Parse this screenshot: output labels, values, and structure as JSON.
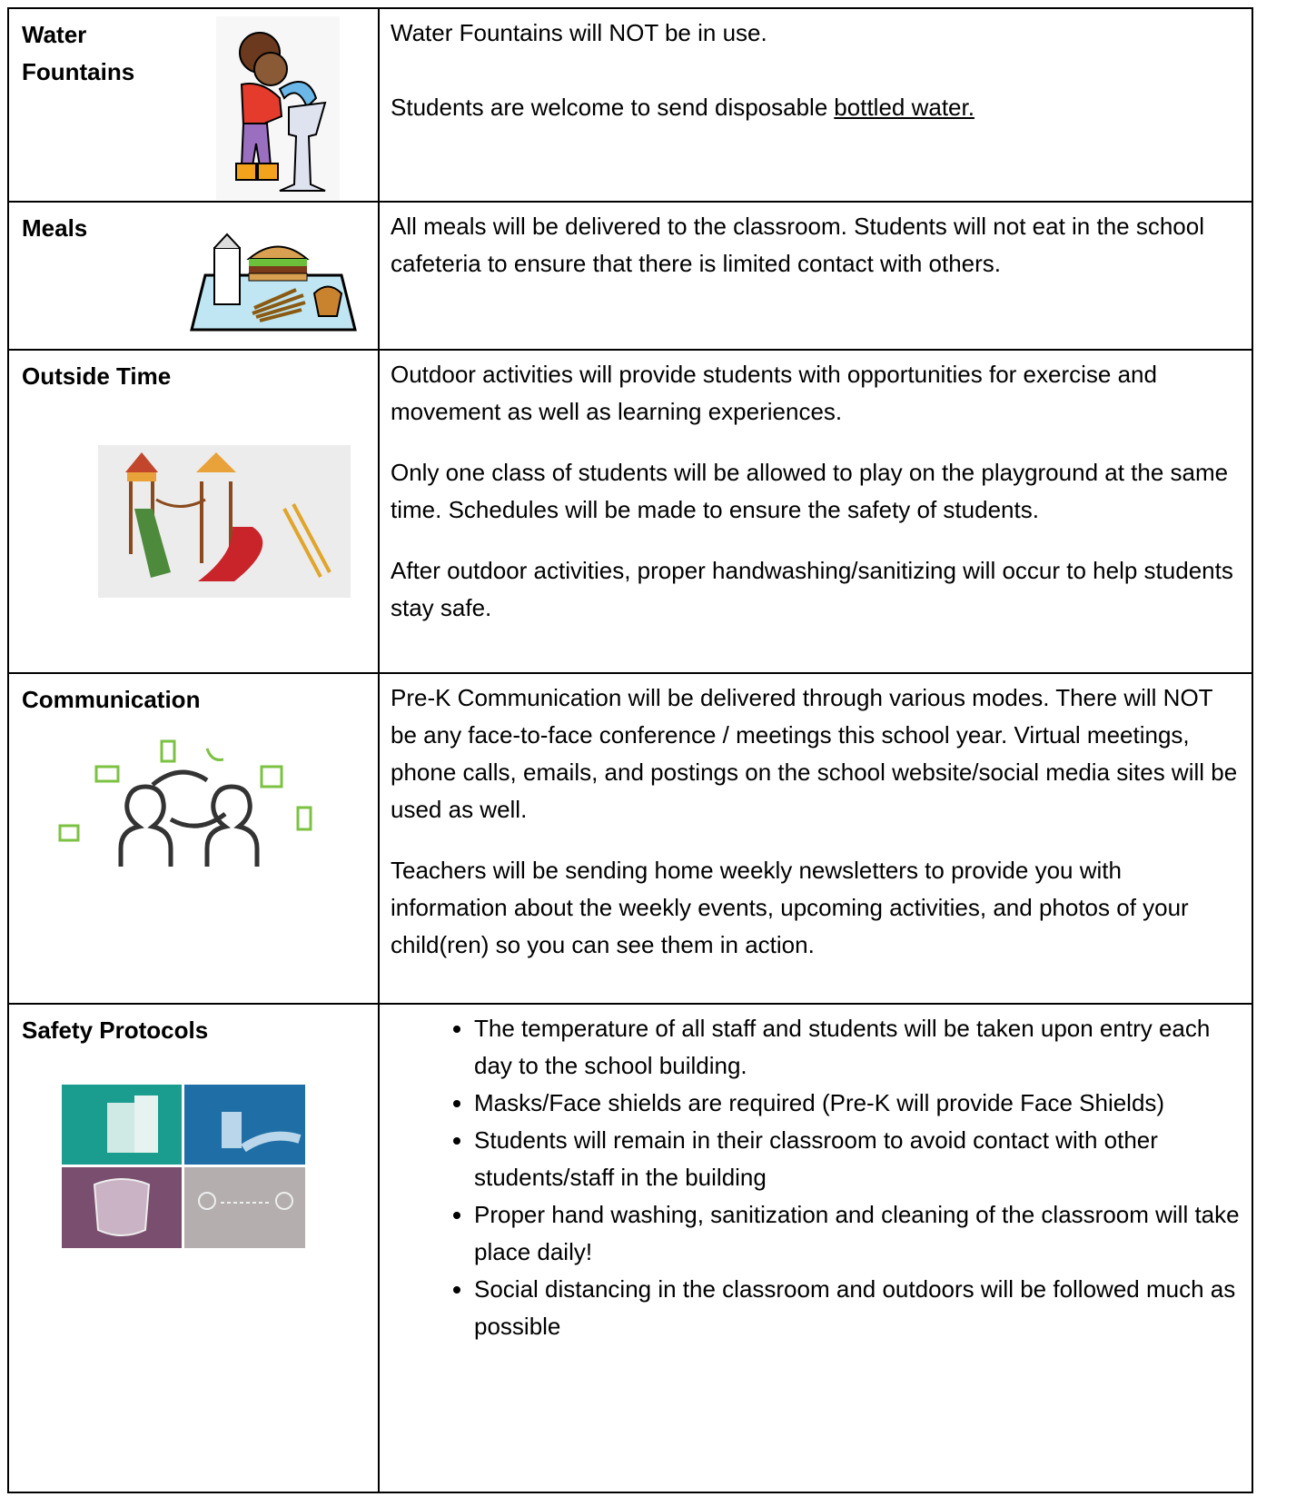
{
  "rows": [
    {
      "label": "Water Fountains",
      "paragraphs": [
        "Water Fountains will NOT be in use."
      ],
      "closing": {
        "text": "Students are welcome to send disposable",
        "link": "bottled water."
      }
    },
    {
      "label": "Meals",
      "paragraphs": [
        "All meals will be delivered to the classroom.  Students will not eat in the school cafeteria to ensure that there is limited contact with others."
      ]
    },
    {
      "label": "Outside Time",
      "paragraphs": [
        "Outdoor activities will provide students with opportunities for exercise and movement as well as learning experiences.",
        "Only one class of students will be allowed to play on the playground at the same time.  Schedules will be made to ensure the safety of students.",
        "After outdoor activities, proper handwashing/sanitizing will occur to help students stay safe."
      ]
    },
    {
      "label": "Communication",
      "paragraphs": [
        "Pre-K Communication will be delivered through various modes. There will NOT be any face-to-face conference / meetings this school year.  Virtual meetings, phone calls, emails, and postings on the school website/social media sites will be used as well.",
        "Teachers will be sending home weekly newsletters to provide you with information about the weekly events, upcoming activities, and photos of your child(ren) so you can see them in action."
      ]
    },
    {
      "label": "Safety Protocols",
      "bullets": [
        "The temperature of all staff and students will be taken upon entry each day to the school building.",
        "Masks/Face shields are required (Pre-K will provide Face Shields)",
        "Students will remain in their classroom to avoid contact with other students/staff in the building",
        "Proper hand washing, sanitization and cleaning of the classroom will take place daily!",
        "Social distancing in the classroom and outdoors will be followed much as possible"
      ]
    }
  ]
}
